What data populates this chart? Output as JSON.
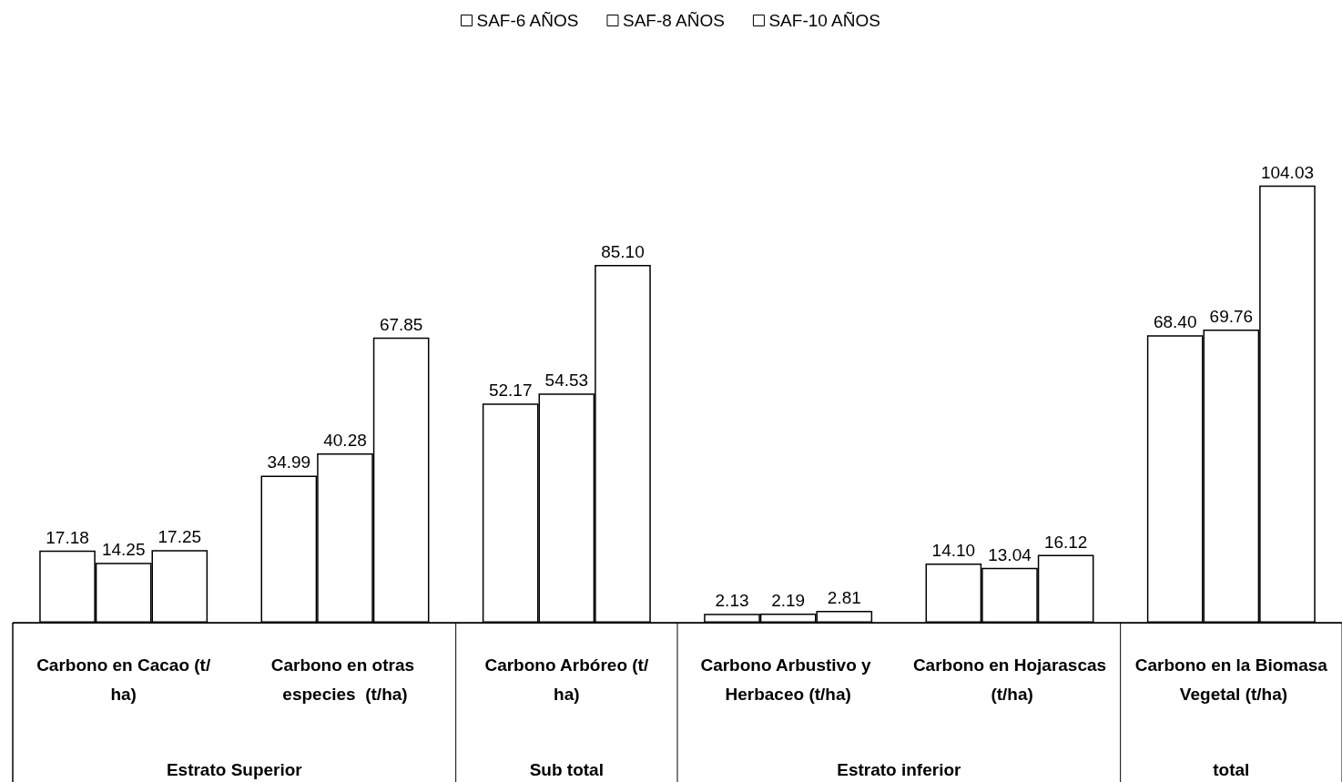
{
  "chart_data": {
    "type": "bar",
    "categories": [
      "Carbono en Cacao (t/ha)",
      "Carbono en otras especies  (t/ha)",
      "Carbono Arbóreo (t/ha)",
      "Carbono Arbustivo y Herbaceo (t/ha)",
      "Carbono en Hojarascas (t/ha)",
      "Carbono en la Biomasa Vegetal (t/ha)"
    ],
    "series": [
      {
        "name": "SAF-6 AÑOS",
        "color": "#ffffff",
        "values": [
          17.18,
          34.99,
          52.17,
          2.13,
          14.1,
          68.4
        ],
        "value_labels": [
          "17.18",
          "34.99",
          "52.17",
          "2.13",
          "14.10",
          "68.40"
        ]
      },
      {
        "name": "SAF-8 AÑOS",
        "color": "#ffffff",
        "values": [
          14.25,
          40.28,
          54.53,
          2.19,
          13.04,
          69.76
        ],
        "value_labels": [
          "14.25",
          "40.28",
          "54.53",
          "2.19",
          "13.04",
          "69.76"
        ]
      },
      {
        "name": "SAF-10 AÑOS",
        "color": "#ffffff",
        "values": [
          17.25,
          67.85,
          85.1,
          2.81,
          16.12,
          104.03
        ],
        "value_labels": [
          "17.25",
          "67.85",
          "85.10",
          "2.81",
          "16.12",
          "104.03"
        ]
      }
    ],
    "annotations": [
      "Estrato Superior",
      "Sub total",
      "Estrato inferior",
      "total"
    ],
    "legend": "top",
    "grid": false,
    "tick_labels": "x"
  }
}
